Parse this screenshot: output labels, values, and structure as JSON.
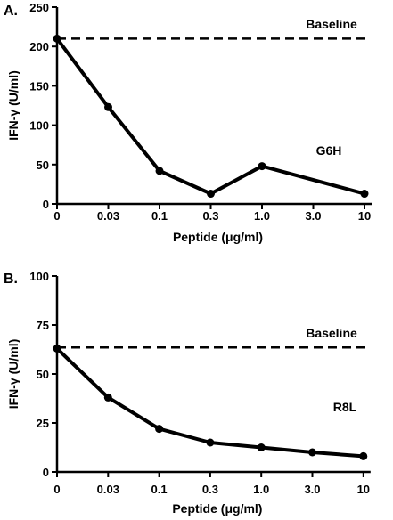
{
  "chart_data": [
    {
      "type": "line",
      "panel_label": "A.",
      "categories": [
        "0",
        "0.03",
        "0.1",
        "0.3",
        "1.0",
        "3.0",
        "10"
      ],
      "series": [
        {
          "values": [
            210,
            123,
            42,
            13,
            48,
            null,
            13
          ]
        }
      ],
      "xlabel": "Peptide (μg/ml)",
      "ylabel": "IFN-γ (U/ml)",
      "ylim": [
        0,
        250
      ],
      "yticks": [
        0,
        50,
        100,
        150,
        200,
        250
      ],
      "baseline": {
        "label": "Baseline",
        "value": 210
      },
      "annotation": "G6H",
      "grid": false
    },
    {
      "type": "line",
      "panel_label": "B.",
      "categories": [
        "0",
        "0.03",
        "0.1",
        "0.3",
        "1.0",
        "3.0",
        "10"
      ],
      "series": [
        {
          "values": [
            63,
            38,
            22,
            15,
            12.5,
            10,
            8
          ]
        }
      ],
      "xlabel": "Peptide (μg/ml)",
      "ylabel": "IFN-γ (U/ml)",
      "ylim": [
        0,
        100
      ],
      "yticks": [
        0,
        25,
        50,
        75,
        100
      ],
      "baseline": {
        "label": "Baseline",
        "value": 63.5
      },
      "annotation": "R8L",
      "grid": false
    }
  ]
}
